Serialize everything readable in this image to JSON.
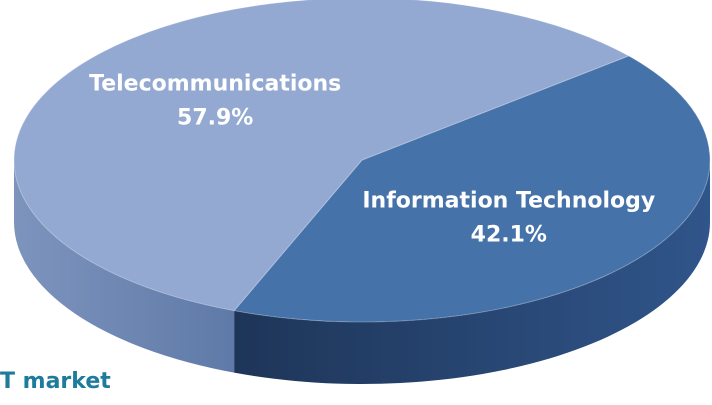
{
  "chart_data": {
    "type": "pie",
    "categories": [
      "Telecommunications",
      "Information Technology"
    ],
    "values": [
      57.9,
      42.1
    ],
    "value_labels": [
      "57.9%",
      "42.1%"
    ],
    "colors": [
      "#93a9d2",
      "#4672aa"
    ],
    "annotation": "T market"
  }
}
